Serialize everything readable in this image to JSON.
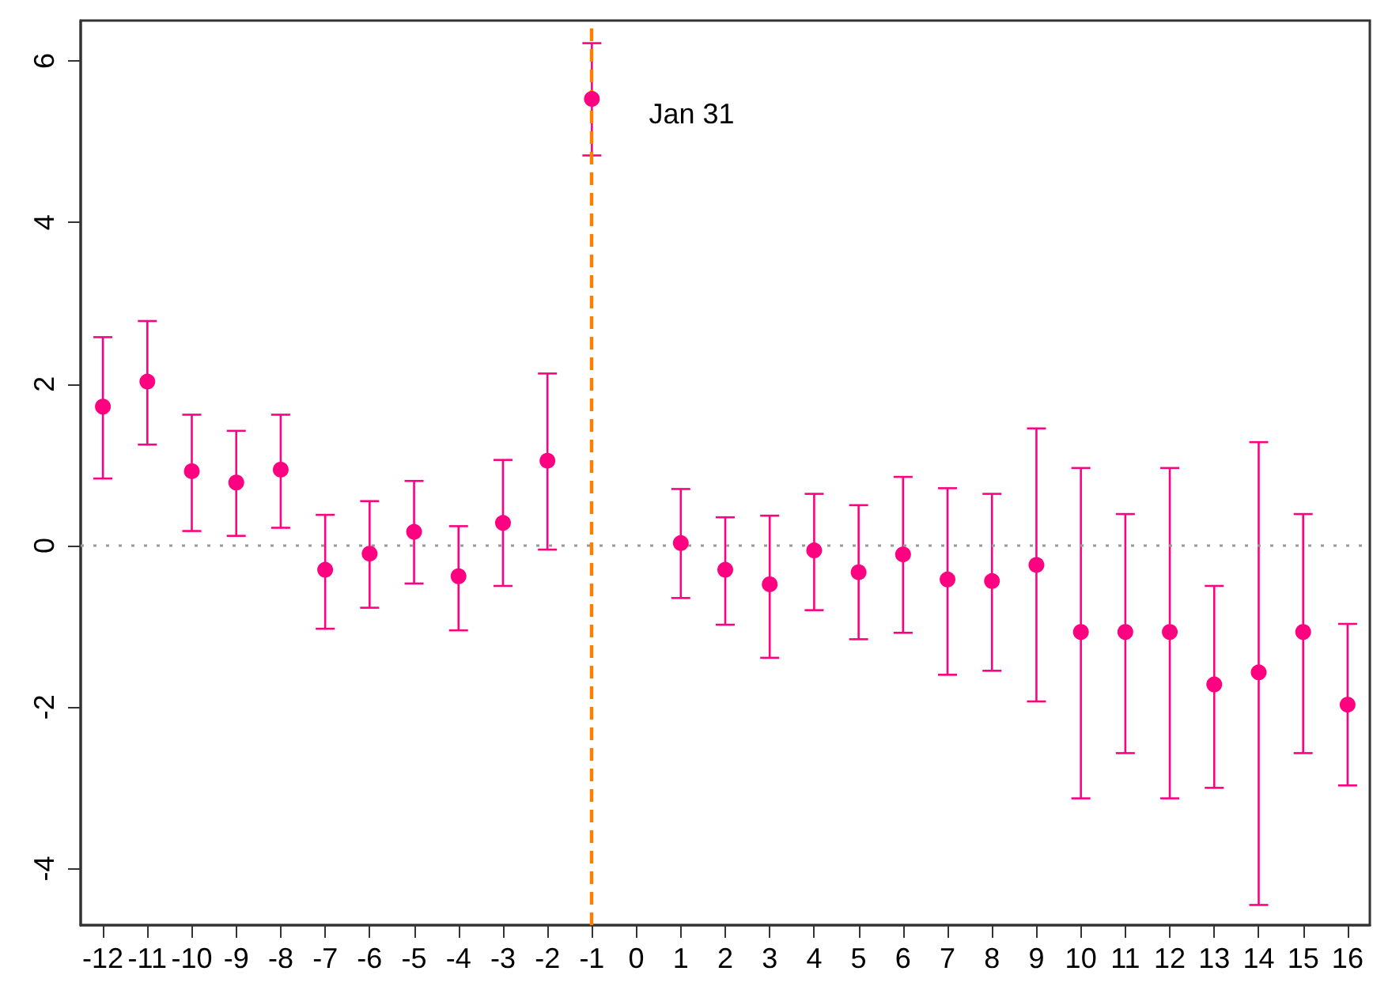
{
  "chart_data": {
    "type": "scatter",
    "x": [
      -12,
      -11,
      -10,
      -9,
      -8,
      -7,
      -6,
      -5,
      -4,
      -3,
      -2,
      -1,
      1,
      2,
      3,
      4,
      5,
      6,
      7,
      8,
      9,
      10,
      11,
      12,
      13,
      14,
      15,
      16
    ],
    "series": [
      {
        "color": "#ff0080",
        "values": [
          1.72,
          2.03,
          0.92,
          0.78,
          0.94,
          -0.3,
          -0.1,
          0.17,
          -0.38,
          0.28,
          1.05,
          5.53,
          0.03,
          -0.3,
          -0.48,
          -0.06,
          -0.33,
          -0.11,
          -0.42,
          -0.44,
          -0.24,
          -1.07,
          -1.07,
          -1.07,
          -1.72,
          -1.57,
          -1.07,
          -1.97
        ],
        "errors": [
          [
            0.83,
            2.58
          ],
          [
            1.25,
            2.78
          ],
          [
            0.18,
            1.62
          ],
          [
            0.12,
            1.42
          ],
          [
            0.22,
            1.62
          ],
          [
            -1.03,
            0.38
          ],
          [
            -0.77,
            0.55
          ],
          [
            -0.47,
            0.8
          ],
          [
            -1.05,
            0.24
          ],
          [
            -0.5,
            1.06
          ],
          [
            -0.05,
            2.13
          ],
          [
            4.83,
            6.22
          ],
          [
            -0.65,
            0.7
          ],
          [
            -0.98,
            0.35
          ],
          [
            -1.39,
            0.37
          ],
          [
            -0.8,
            0.64
          ],
          [
            -1.16,
            0.5
          ],
          [
            -1.08,
            0.85
          ],
          [
            -1.6,
            0.71
          ],
          [
            -1.55,
            0.64
          ],
          [
            -1.93,
            1.45
          ],
          [
            -3.13,
            0.96
          ],
          [
            -2.57,
            0.39
          ],
          [
            -3.13,
            0.96
          ],
          [
            -3.0,
            -0.5
          ],
          [
            -4.45,
            1.28
          ],
          [
            -2.57,
            0.39
          ],
          [
            -2.97,
            -0.97
          ]
        ]
      }
    ],
    "marker": "circle",
    "xlim": [
      -12.5,
      16.5
    ],
    "xticks": [
      -12,
      -11,
      -10,
      -9,
      -8,
      -7,
      -6,
      -5,
      -4,
      -3,
      -2,
      -1,
      0,
      1,
      2,
      3,
      4,
      5,
      6,
      7,
      8,
      9,
      10,
      11,
      12,
      13,
      14,
      15,
      16
    ],
    "ylim": [
      -4.7,
      6.5
    ],
    "yticks": [
      -4,
      -2,
      0,
      2,
      4,
      6
    ],
    "ref_lines": [
      {
        "axis": "x",
        "value": -1,
        "label": "Jan 31",
        "color": "#ff7f00",
        "line_style": "dashed"
      },
      {
        "axis": "y",
        "value": 0,
        "color": "#999999",
        "line_style": "dotted"
      }
    ]
  }
}
